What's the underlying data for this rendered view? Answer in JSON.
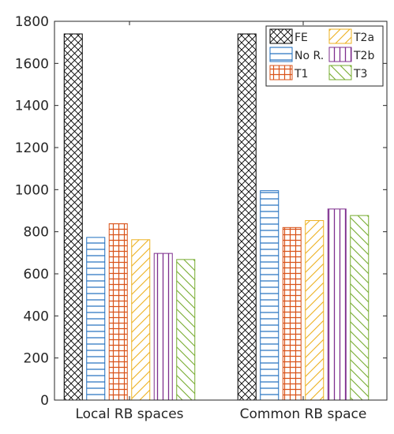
{
  "chart_data": {
    "type": "bar",
    "title": "",
    "xlabel": "",
    "ylabel": "",
    "categories": [
      "Local RB spaces",
      "Common RB space"
    ],
    "ylim": [
      0,
      1800
    ],
    "yticks": [
      0,
      200,
      400,
      600,
      800,
      1000,
      1200,
      1400,
      1600,
      1800
    ],
    "grid": false,
    "legend_position": "top-right",
    "series": [
      {
        "name": "FE",
        "values": [
          1740,
          1740
        ],
        "color": "#000000",
        "pattern": "crosshatch"
      },
      {
        "name": "No R.",
        "values": [
          773,
          995
        ],
        "color": "#1f6fbf",
        "pattern": "horizontal"
      },
      {
        "name": "T1",
        "values": [
          838,
          820
        ],
        "color": "#d95319",
        "pattern": "grid"
      },
      {
        "name": "T2a",
        "values": [
          762,
          853
        ],
        "color": "#edb120",
        "pattern": "diagonal-up"
      },
      {
        "name": "T2b",
        "values": [
          697,
          908
        ],
        "color": "#7e2f8e",
        "pattern": "vertical"
      },
      {
        "name": "T3",
        "values": [
          668,
          877
        ],
        "color": "#77ac30",
        "pattern": "diagonal-down"
      }
    ]
  }
}
